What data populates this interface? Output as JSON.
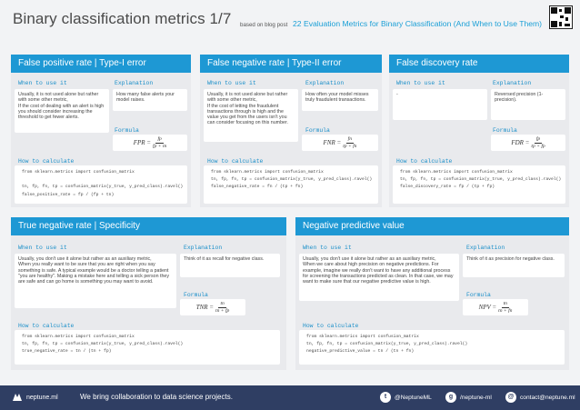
{
  "header": {
    "title": "Binary classification metrics  1/7",
    "based_on": "based on blog post",
    "post_title": "22 Evaluation Metrics for Binary Classification (And When to Use Them)"
  },
  "labels": {
    "when": "When to use it",
    "explanation": "Explanation",
    "formula": "Formula",
    "how": "How to calculate"
  },
  "panels": {
    "fpr": {
      "title": "False positive rate | Type-I error",
      "when": "Usually, it is not used alone but rather with some other metric,\nIf the cost of dealing with an alert is high you should consider increasing the threshold to get fewer alerts.",
      "explanation": "How many false alerts your model raises.",
      "formula": {
        "lhs": "FPR =",
        "num": "fp",
        "den": "fp + tn"
      },
      "code": "from sklearn.metrics import confusion_matrix\n\ntn, fp, fn, tp = confusion_matrix(y_true, y_pred_class).ravel()\nfalse_positive_rate = fp / (fp + tn)"
    },
    "fnr": {
      "title": "False negative rate | Type-II error",
      "when": "Usually, it is not used alone but rather with some other metric,\nIf the cost of letting the fraudulent transactions through is high and the value you get from the users isn't you can consider focusing on this number.",
      "explanation": "How often your model misses truly fraudulent transactions.",
      "formula": {
        "lhs": "FNR =",
        "num": "fn",
        "den": "tp + fn"
      },
      "code": "from sklearn.metrics import confusion_matrix\ntn, fp, fn, tp = confusion_matrix(y_true, y_pred_class).ravel()\nfalse_negative_rate = fn / (tp + fn)"
    },
    "fdr": {
      "title": "False discovery rate",
      "when": "-",
      "explanation": "Reversed precision (1- precision).",
      "formula": {
        "lhs": "FDR =",
        "num": "fp",
        "den": "tp + fp"
      },
      "code": "from sklearn.metrics import confusion_matrix\ntn, fp, fn, tp = confusion_matrix(y_true, y_pred_class).ravel()\nfalse_discovery_rate = fp / (tp + fp)"
    },
    "tnr": {
      "title": "True negative rate | Specificity",
      "when": "Usually, you don't use it alone but rather as an auxiliary metric,\nWhen you really want to be sure that you are right when you say something is safe. A typical example would be a doctor telling a patient \"you are healthy\". Making a mistake here and telling a sick person they are safe and can go home is something you may want to avoid.",
      "explanation": "Think of it as recall for negative class.",
      "formula": {
        "lhs": "TNR =",
        "num": "tn",
        "den": "tn + fp"
      },
      "code": "from sklearn.metrics import confusion_matrix\ntn, fp, fn, tp = confusion_matrix(y_true, y_pred_class).ravel()\ntrue_negative_rate = tn / (tn + fp)"
    },
    "npv": {
      "title": "Negative predictive value",
      "when": "Usually, you don't use it alone but rather as an auxiliary metric,\nWhen we care about high precision on negative predictions. For example, imagine we really don't want to have any additional process for screening the transactions predicted as clean. In that case, we may want to make sure that our negative predictive value is high.",
      "explanation": "Think of it as precision for negative class.",
      "formula": {
        "lhs": "NPV =",
        "num": "tn",
        "den": "tn + fn"
      },
      "code": "from sklearn.metrics import confusion_matrix\ntn, fp, fn, tp = confusion_matrix(y_true, y_pred_class).ravel()\nnegative_predictive_value = tn / (tn + fn)"
    }
  },
  "footer": {
    "brand": "neptune.ml",
    "tagline": "We bring collaboration to data science projects.",
    "twitter": "@NeptuneML",
    "github": "/neptune-ml",
    "email": "contact@neptune.ml",
    "twitter_icon": "twitter-icon",
    "github_icon": "github-icon",
    "mail_icon": "mail-icon"
  },
  "colors": {
    "accent": "#1e98d4",
    "footer": "#2f3e63",
    "panel": "#e9eaed",
    "label": "#1a8fc9"
  }
}
